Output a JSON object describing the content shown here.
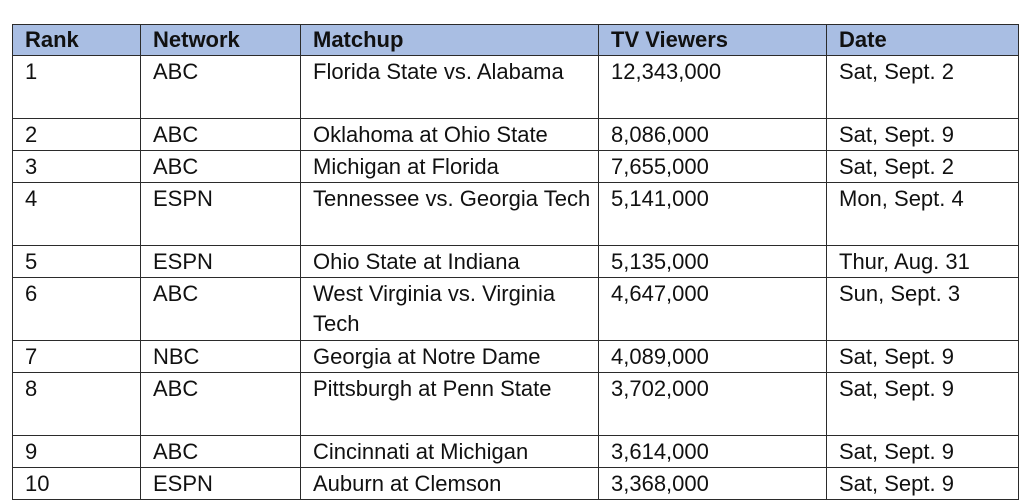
{
  "table": {
    "headers": {
      "rank": "Rank",
      "network": "Network",
      "matchup": "Matchup",
      "viewers": "TV Viewers",
      "date": "Date"
    },
    "rows": [
      {
        "rank": "1",
        "network": "ABC",
        "matchup": "Florida State vs. Alabama",
        "viewers": "12,343,000",
        "date": "Sat, Sept. 2"
      },
      {
        "rank": "2",
        "network": "ABC",
        "matchup": "Oklahoma at Ohio State",
        "viewers": "8,086,000",
        "date": "Sat, Sept. 9"
      },
      {
        "rank": "3",
        "network": "ABC",
        "matchup": "Michigan at Florida",
        "viewers": "7,655,000",
        "date": "Sat, Sept. 2"
      },
      {
        "rank": "4",
        "network": "ESPN",
        "matchup": "Tennessee vs. Georgia Tech",
        "viewers": "5,141,000",
        "date": "Mon, Sept. 4"
      },
      {
        "rank": "5",
        "network": "ESPN",
        "matchup": "Ohio State at Indiana",
        "viewers": "5,135,000",
        "date": "Thur, Aug. 31"
      },
      {
        "rank": "6",
        "network": "ABC",
        "matchup": "West Virginia vs. Virginia Tech",
        "viewers": "4,647,000",
        "date": "Sun, Sept. 3"
      },
      {
        "rank": "7",
        "network": "NBC",
        "matchup": "Georgia at Notre Dame",
        "viewers": "4,089,000",
        "date": "Sat, Sept. 9"
      },
      {
        "rank": "8",
        "network": "ABC",
        "matchup": "Pittsburgh at Penn State",
        "viewers": "3,702,000",
        "date": "Sat, Sept. 9"
      },
      {
        "rank": "9",
        "network": "ABC",
        "matchup": "Cincinnati at Michigan",
        "viewers": "3,614,000",
        "date": "Sat, Sept. 9"
      },
      {
        "rank": "10",
        "network": "ESPN",
        "matchup": "Auburn at Clemson",
        "viewers": "3,368,000",
        "date": "Sat, Sept. 9"
      }
    ]
  },
  "colors": {
    "header_background": "#a9bee3",
    "border": "#2b2b2b",
    "text": "#111111"
  }
}
